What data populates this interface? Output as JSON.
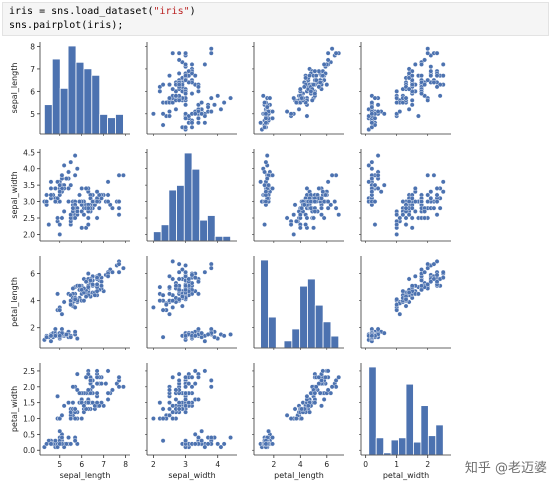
{
  "code": {
    "line1": "iris = sns.load_dataset(\"iris\")",
    "line1_prefix": "iris = sns.load_dataset(",
    "line1_str": "\"iris\"",
    "line1_suffix": ")",
    "line2": "sns.pairplot(iris);"
  },
  "watermark": "知乎 @老迈婆",
  "colors": {
    "point": "#4c72b0",
    "bar": "#4c72b0",
    "axis": "#333333"
  },
  "chart_data": {
    "type": "scatter",
    "variables": [
      "sepal_length",
      "sepal_width",
      "petal_length",
      "petal_width"
    ],
    "ticks": {
      "sepal_length": {
        "lim": [
          4.1,
          8.2
        ],
        "ticks": [
          5,
          6,
          7,
          8
        ],
        "labels": [
          "5",
          "6",
          "7",
          "8"
        ]
      },
      "sepal_width": {
        "lim": [
          1.8,
          4.6
        ],
        "ticks": [
          2,
          3,
          4
        ],
        "labels": [
          "2",
          "3",
          "4"
        ],
        "yticks": [
          2.0,
          2.5,
          3.0,
          3.5,
          4.0,
          4.5
        ],
        "ylabels": [
          "2.0",
          "2.5",
          "3.0",
          "3.5",
          "4.0",
          "4.5"
        ]
      },
      "petal_length": {
        "lim": [
          0.5,
          7.3
        ],
        "ticks": [
          2,
          4,
          6
        ],
        "labels": [
          "2",
          "4",
          "6"
        ]
      },
      "petal_width": {
        "lim": [
          -0.15,
          2.75
        ],
        "ticks": [
          0,
          1,
          2
        ],
        "labels": [
          "0",
          "1",
          "2"
        ],
        "yticks": [
          0.0,
          0.5,
          1.0,
          1.5,
          2.0,
          2.5
        ],
        "ylabels": [
          "0.0",
          "0.5",
          "1.0",
          "1.5",
          "2.0",
          "2.5"
        ]
      }
    },
    "histograms": {
      "sepal_length": {
        "bins": [
          4.3,
          4.66,
          5.02,
          5.38,
          5.74,
          6.1,
          6.46,
          6.82,
          7.18,
          7.54,
          7.9
        ],
        "counts": [
          9,
          23,
          14,
          27,
          22,
          20,
          18,
          6,
          5,
          6
        ]
      },
      "sepal_width": {
        "bins": [
          2.0,
          2.24,
          2.48,
          2.72,
          2.96,
          3.2,
          3.44,
          3.68,
          3.92,
          4.16,
          4.4
        ],
        "counts": [
          4,
          7,
          22,
          24,
          38,
          31,
          9,
          11,
          2,
          2
        ]
      },
      "petal_length": {
        "bins": [
          1.0,
          1.59,
          2.18,
          2.77,
          3.36,
          3.95,
          4.54,
          5.13,
          5.72,
          6.31,
          6.9
        ],
        "counts": [
          37,
          13,
          0,
          3,
          8,
          26,
          29,
          18,
          11,
          5
        ]
      },
      "petal_width": {
        "bins": [
          0.1,
          0.34,
          0.58,
          0.82,
          1.06,
          1.3,
          1.54,
          1.78,
          2.02,
          2.26,
          2.5
        ],
        "counts": [
          41,
          8,
          1,
          7,
          8,
          33,
          6,
          23,
          9,
          14
        ]
      }
    },
    "points": [
      [
        5.1,
        3.5,
        1.4,
        0.2
      ],
      [
        4.9,
        3.0,
        1.4,
        0.2
      ],
      [
        4.7,
        3.2,
        1.3,
        0.2
      ],
      [
        4.6,
        3.1,
        1.5,
        0.2
      ],
      [
        5.0,
        3.6,
        1.4,
        0.2
      ],
      [
        5.4,
        3.9,
        1.7,
        0.4
      ],
      [
        4.6,
        3.4,
        1.4,
        0.3
      ],
      [
        5.0,
        3.4,
        1.5,
        0.2
      ],
      [
        4.4,
        2.9,
        1.4,
        0.2
      ],
      [
        4.9,
        3.1,
        1.5,
        0.1
      ],
      [
        5.4,
        3.7,
        1.5,
        0.2
      ],
      [
        4.8,
        3.4,
        1.6,
        0.2
      ],
      [
        4.8,
        3.0,
        1.4,
        0.1
      ],
      [
        4.3,
        3.0,
        1.1,
        0.1
      ],
      [
        5.8,
        4.0,
        1.2,
        0.2
      ],
      [
        5.7,
        4.4,
        1.5,
        0.4
      ],
      [
        5.4,
        3.9,
        1.3,
        0.4
      ],
      [
        5.1,
        3.5,
        1.4,
        0.3
      ],
      [
        5.7,
        3.8,
        1.7,
        0.3
      ],
      [
        5.1,
        3.8,
        1.5,
        0.3
      ],
      [
        5.4,
        3.4,
        1.7,
        0.2
      ],
      [
        5.1,
        3.7,
        1.5,
        0.4
      ],
      [
        4.6,
        3.6,
        1.0,
        0.2
      ],
      [
        5.1,
        3.3,
        1.7,
        0.5
      ],
      [
        4.8,
        3.4,
        1.9,
        0.2
      ],
      [
        5.0,
        3.0,
        1.6,
        0.2
      ],
      [
        5.0,
        3.4,
        1.6,
        0.4
      ],
      [
        5.2,
        3.5,
        1.5,
        0.2
      ],
      [
        5.2,
        3.4,
        1.4,
        0.2
      ],
      [
        4.7,
        3.2,
        1.6,
        0.2
      ],
      [
        4.8,
        3.1,
        1.6,
        0.2
      ],
      [
        5.4,
        3.4,
        1.5,
        0.4
      ],
      [
        5.2,
        4.1,
        1.5,
        0.1
      ],
      [
        5.5,
        4.2,
        1.4,
        0.2
      ],
      [
        4.9,
        3.1,
        1.5,
        0.2
      ],
      [
        5.0,
        3.2,
        1.2,
        0.2
      ],
      [
        5.5,
        3.5,
        1.3,
        0.2
      ],
      [
        4.9,
        3.6,
        1.4,
        0.1
      ],
      [
        4.4,
        3.0,
        1.3,
        0.2
      ],
      [
        5.1,
        3.4,
        1.5,
        0.2
      ],
      [
        5.0,
        3.5,
        1.3,
        0.3
      ],
      [
        4.5,
        2.3,
        1.3,
        0.3
      ],
      [
        4.4,
        3.2,
        1.3,
        0.2
      ],
      [
        5.0,
        3.5,
        1.6,
        0.6
      ],
      [
        5.1,
        3.8,
        1.9,
        0.4
      ],
      [
        4.8,
        3.0,
        1.4,
        0.3
      ],
      [
        5.1,
        3.8,
        1.6,
        0.2
      ],
      [
        4.6,
        3.2,
        1.4,
        0.2
      ],
      [
        5.3,
        3.7,
        1.5,
        0.2
      ],
      [
        5.0,
        3.3,
        1.4,
        0.2
      ],
      [
        7.0,
        3.2,
        4.7,
        1.4
      ],
      [
        6.4,
        3.2,
        4.5,
        1.5
      ],
      [
        6.9,
        3.1,
        4.9,
        1.5
      ],
      [
        5.5,
        2.3,
        4.0,
        1.3
      ],
      [
        6.5,
        2.8,
        4.6,
        1.5
      ],
      [
        5.7,
        2.8,
        4.5,
        1.3
      ],
      [
        6.3,
        3.3,
        4.7,
        1.6
      ],
      [
        4.9,
        2.4,
        3.3,
        1.0
      ],
      [
        6.6,
        2.9,
        4.6,
        1.3
      ],
      [
        5.2,
        2.7,
        3.9,
        1.4
      ],
      [
        5.0,
        2.0,
        3.5,
        1.0
      ],
      [
        5.9,
        3.0,
        4.2,
        1.5
      ],
      [
        6.0,
        2.2,
        4.0,
        1.0
      ],
      [
        6.1,
        2.9,
        4.7,
        1.4
      ],
      [
        5.6,
        2.9,
        3.6,
        1.3
      ],
      [
        6.7,
        3.1,
        4.4,
        1.4
      ],
      [
        5.6,
        3.0,
        4.5,
        1.5
      ],
      [
        5.8,
        2.7,
        4.1,
        1.0
      ],
      [
        6.2,
        2.2,
        4.5,
        1.5
      ],
      [
        5.6,
        2.5,
        3.9,
        1.1
      ],
      [
        5.9,
        3.2,
        4.8,
        1.8
      ],
      [
        6.1,
        2.8,
        4.0,
        1.3
      ],
      [
        6.3,
        2.5,
        4.9,
        1.5
      ],
      [
        6.1,
        2.8,
        4.7,
        1.2
      ],
      [
        6.4,
        2.9,
        4.3,
        1.3
      ],
      [
        6.6,
        3.0,
        4.4,
        1.4
      ],
      [
        6.8,
        2.8,
        4.8,
        1.4
      ],
      [
        6.7,
        3.0,
        5.0,
        1.7
      ],
      [
        6.0,
        2.9,
        4.5,
        1.5
      ],
      [
        5.7,
        2.6,
        3.5,
        1.0
      ],
      [
        5.5,
        2.4,
        3.8,
        1.1
      ],
      [
        5.5,
        2.4,
        3.7,
        1.0
      ],
      [
        5.8,
        2.7,
        3.9,
        1.2
      ],
      [
        6.0,
        2.7,
        5.1,
        1.6
      ],
      [
        5.4,
        3.0,
        4.5,
        1.5
      ],
      [
        6.0,
        3.4,
        4.5,
        1.6
      ],
      [
        6.7,
        3.1,
        4.7,
        1.5
      ],
      [
        6.3,
        2.3,
        4.4,
        1.3
      ],
      [
        5.6,
        3.0,
        4.1,
        1.3
      ],
      [
        5.5,
        2.5,
        4.0,
        1.3
      ],
      [
        5.5,
        2.6,
        4.4,
        1.2
      ],
      [
        6.1,
        3.0,
        4.6,
        1.4
      ],
      [
        5.8,
        2.6,
        4.0,
        1.2
      ],
      [
        5.0,
        2.3,
        3.3,
        1.0
      ],
      [
        5.6,
        2.7,
        4.2,
        1.3
      ],
      [
        5.7,
        3.0,
        4.2,
        1.2
      ],
      [
        5.7,
        2.9,
        4.2,
        1.3
      ],
      [
        6.2,
        2.9,
        4.3,
        1.3
      ],
      [
        5.1,
        2.5,
        3.0,
        1.1
      ],
      [
        5.7,
        2.8,
        4.1,
        1.3
      ],
      [
        6.3,
        3.3,
        6.0,
        2.5
      ],
      [
        5.8,
        2.7,
        5.1,
        1.9
      ],
      [
        7.1,
        3.0,
        5.9,
        2.1
      ],
      [
        6.3,
        2.9,
        5.6,
        1.8
      ],
      [
        6.5,
        3.0,
        5.8,
        2.2
      ],
      [
        7.6,
        3.0,
        6.6,
        2.1
      ],
      [
        4.9,
        2.5,
        4.5,
        1.7
      ],
      [
        7.3,
        2.9,
        6.3,
        1.8
      ],
      [
        6.7,
        2.5,
        5.8,
        1.8
      ],
      [
        7.2,
        3.6,
        6.1,
        2.5
      ],
      [
        6.5,
        3.2,
        5.1,
        2.0
      ],
      [
        6.4,
        2.7,
        5.3,
        1.9
      ],
      [
        6.8,
        3.0,
        5.5,
        2.1
      ],
      [
        5.7,
        2.5,
        5.0,
        2.0
      ],
      [
        5.8,
        2.8,
        5.1,
        2.4
      ],
      [
        6.4,
        3.2,
        5.3,
        2.3
      ],
      [
        6.5,
        3.0,
        5.5,
        1.8
      ],
      [
        7.7,
        3.8,
        6.7,
        2.2
      ],
      [
        7.7,
        2.6,
        6.9,
        2.3
      ],
      [
        6.0,
        2.2,
        5.0,
        1.5
      ],
      [
        6.9,
        3.2,
        5.7,
        2.3
      ],
      [
        5.6,
        2.8,
        4.9,
        2.0
      ],
      [
        7.7,
        2.8,
        6.7,
        2.0
      ],
      [
        6.3,
        2.7,
        4.9,
        1.8
      ],
      [
        6.7,
        3.3,
        5.7,
        2.1
      ],
      [
        7.2,
        3.2,
        6.0,
        1.8
      ],
      [
        6.2,
        2.8,
        4.8,
        1.8
      ],
      [
        6.1,
        3.0,
        4.9,
        1.8
      ],
      [
        6.4,
        2.8,
        5.6,
        2.1
      ],
      [
        7.2,
        3.0,
        5.8,
        1.6
      ],
      [
        7.4,
        2.8,
        6.1,
        1.9
      ],
      [
        7.9,
        3.8,
        6.4,
        2.0
      ],
      [
        6.4,
        2.8,
        5.6,
        2.2
      ],
      [
        6.3,
        2.8,
        5.1,
        1.5
      ],
      [
        6.1,
        2.6,
        5.6,
        1.4
      ],
      [
        7.7,
        3.0,
        6.1,
        2.3
      ],
      [
        6.3,
        3.4,
        5.6,
        2.4
      ],
      [
        6.4,
        3.1,
        5.5,
        1.8
      ],
      [
        6.0,
        3.0,
        4.8,
        1.8
      ],
      [
        6.9,
        3.1,
        5.4,
        2.1
      ],
      [
        6.7,
        3.1,
        5.6,
        2.4
      ],
      [
        6.9,
        3.1,
        5.1,
        2.3
      ],
      [
        5.8,
        2.7,
        5.1,
        1.9
      ],
      [
        6.8,
        3.2,
        5.9,
        2.3
      ],
      [
        6.7,
        3.3,
        5.7,
        2.5
      ],
      [
        6.7,
        3.0,
        5.2,
        2.3
      ],
      [
        6.3,
        2.5,
        5.0,
        1.9
      ],
      [
        6.5,
        3.0,
        5.2,
        2.0
      ],
      [
        6.2,
        3.4,
        5.4,
        2.3
      ],
      [
        5.9,
        3.0,
        5.1,
        1.8
      ]
    ]
  }
}
